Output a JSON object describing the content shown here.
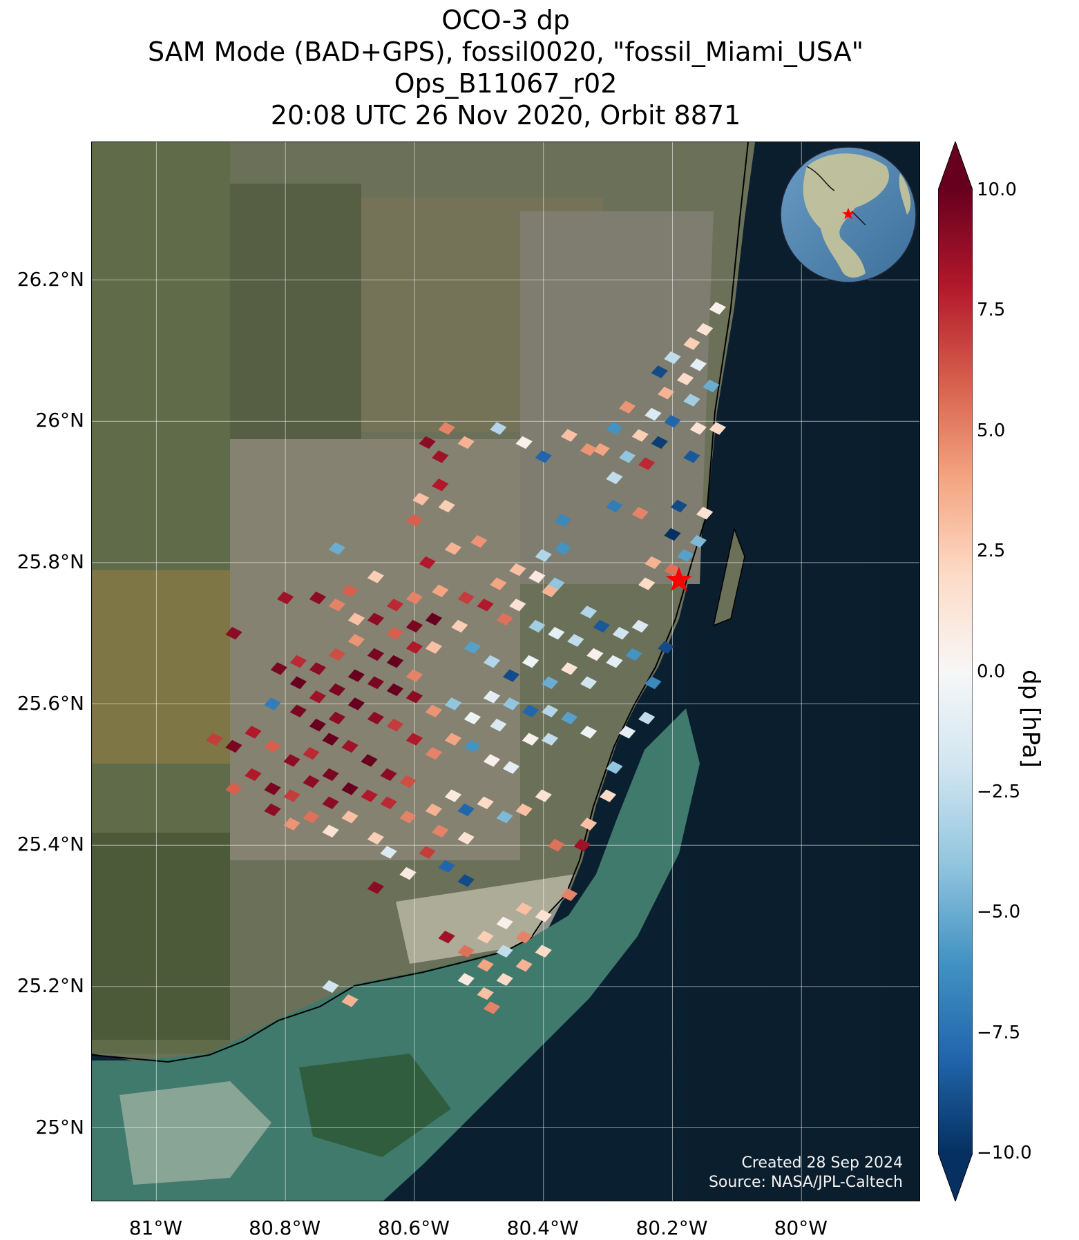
{
  "title_lines": [
    "OCO-3 dp",
    "SAM Mode (BAD+GPS), fossil0020, \"fossil_Miami_USA\"",
    "Ops_B11067_r02",
    "20:08 UTC 26 Nov 2020, Orbit 8871"
  ],
  "map": {
    "lat_ticks": [
      "26.2°N",
      "26°N",
      "25.8°N",
      "25.6°N",
      "25.4°N",
      "25.2°N",
      "25°N"
    ],
    "lat_values": [
      26.2,
      26.0,
      25.8,
      25.6,
      25.4,
      25.2,
      25.0
    ],
    "lon_ticks": [
      "81°W",
      "80.8°W",
      "80.6°W",
      "80.4°W",
      "80.2°W",
      "80°W"
    ],
    "lon_values": [
      -81.0,
      -80.8,
      -80.6,
      -80.4,
      -80.2,
      -80.0
    ],
    "lon_range": [
      -81.1,
      -79.815
    ],
    "lat_range": [
      24.895,
      26.395
    ],
    "target_marker": {
      "lon": -80.19,
      "lat": 25.775,
      "color": "#ff0000",
      "shape": "star"
    },
    "credits": [
      "Created 28 Sep 2024",
      "Source: NASA/JPL-Caltech"
    ],
    "inset": "globe-icon"
  },
  "colorbar": {
    "label": "dp [hPa]",
    "ticks": [
      "10.0",
      "7.5",
      "5.0",
      "2.5",
      "0.0",
      "−2.5",
      "−5.0",
      "−7.5",
      "−10.0"
    ],
    "tick_values": [
      10,
      7.5,
      5,
      2.5,
      0,
      -2.5,
      -5,
      -7.5,
      -10
    ],
    "range": [
      -10,
      10
    ],
    "colors": {
      "max": "#67001f",
      "mid": "#f7f7f7",
      "min": "#053061"
    }
  },
  "chart_data": {
    "type": "heatmap",
    "variable": "dp",
    "units": "hPa",
    "value_range": [
      -10,
      10
    ],
    "cell_size_deg": [
      0.026,
      0.018
    ],
    "points": [
      {
        "lon": -80.13,
        "lat": 26.16,
        "dp": 0.5
      },
      {
        "lon": -80.15,
        "lat": 26.13,
        "dp": 1.5
      },
      {
        "lon": -80.17,
        "lat": 26.11,
        "dp": 2.5
      },
      {
        "lon": -80.2,
        "lat": 26.09,
        "dp": -2.5
      },
      {
        "lon": -80.16,
        "lat": 26.08,
        "dp": -1.0
      },
      {
        "lon": -80.22,
        "lat": 26.07,
        "dp": -9.0
      },
      {
        "lon": -80.18,
        "lat": 26.06,
        "dp": 2.0
      },
      {
        "lon": -80.14,
        "lat": 26.05,
        "dp": -5.0
      },
      {
        "lon": -80.21,
        "lat": 26.04,
        "dp": 3.5
      },
      {
        "lon": -80.17,
        "lat": 26.03,
        "dp": -3.5
      },
      {
        "lon": -80.27,
        "lat": 26.02,
        "dp": 4.5
      },
      {
        "lon": -80.23,
        "lat": 26.01,
        "dp": -1.5
      },
      {
        "lon": -80.2,
        "lat": 26.0,
        "dp": -8.0
      },
      {
        "lon": -80.16,
        "lat": 25.99,
        "dp": 1.5
      },
      {
        "lon": -80.29,
        "lat": 25.99,
        "dp": -6.0
      },
      {
        "lon": -80.25,
        "lat": 25.98,
        "dp": 2.5
      },
      {
        "lon": -80.22,
        "lat": 25.97,
        "dp": -9.5
      },
      {
        "lon": -80.13,
        "lat": 25.99,
        "dp": 2.0
      },
      {
        "lon": -80.31,
        "lat": 25.96,
        "dp": 4.0
      },
      {
        "lon": -80.27,
        "lat": 25.95,
        "dp": -4.0
      },
      {
        "lon": -80.24,
        "lat": 25.94,
        "dp": 7.5
      },
      {
        "lon": -80.17,
        "lat": 25.95,
        "dp": -8.5
      },
      {
        "lon": -80.55,
        "lat": 25.99,
        "dp": 5.0
      },
      {
        "lon": -80.58,
        "lat": 25.97,
        "dp": 9.0
      },
      {
        "lon": -80.52,
        "lat": 25.97,
        "dp": 3.5
      },
      {
        "lon": -80.56,
        "lat": 25.95,
        "dp": 8.5
      },
      {
        "lon": -80.47,
        "lat": 25.99,
        "dp": -3.0
      },
      {
        "lon": -80.43,
        "lat": 25.97,
        "dp": 0.5
      },
      {
        "lon": -80.4,
        "lat": 25.95,
        "dp": -8.0
      },
      {
        "lon": -80.36,
        "lat": 25.98,
        "dp": 3.0
      },
      {
        "lon": -80.33,
        "lat": 25.96,
        "dp": 4.5
      },
      {
        "lon": -80.29,
        "lat": 25.92,
        "dp": -2.5
      },
      {
        "lon": -80.56,
        "lat": 25.91,
        "dp": 8.0
      },
      {
        "lon": -80.59,
        "lat": 25.89,
        "dp": 3.0
      },
      {
        "lon": -80.55,
        "lat": 25.88,
        "dp": 2.5
      },
      {
        "lon": -80.6,
        "lat": 25.86,
        "dp": 6.0
      },
      {
        "lon": -80.29,
        "lat": 25.88,
        "dp": -7.0
      },
      {
        "lon": -80.25,
        "lat": 25.87,
        "dp": 5.0
      },
      {
        "lon": -80.19,
        "lat": 25.88,
        "dp": -9.0
      },
      {
        "lon": -80.15,
        "lat": 25.87,
        "dp": 1.5
      },
      {
        "lon": -80.37,
        "lat": 25.86,
        "dp": -6.5
      },
      {
        "lon": -80.2,
        "lat": 25.84,
        "dp": -10.0
      },
      {
        "lon": -80.16,
        "lat": 25.83,
        "dp": -4.5
      },
      {
        "lon": -80.72,
        "lat": 25.82,
        "dp": -5.0
      },
      {
        "lon": -80.58,
        "lat": 25.8,
        "dp": 8.0
      },
      {
        "lon": -80.54,
        "lat": 25.82,
        "dp": 3.5
      },
      {
        "lon": -80.5,
        "lat": 25.83,
        "dp": 4.5
      },
      {
        "lon": -80.4,
        "lat": 25.81,
        "dp": -3.0
      },
      {
        "lon": -80.37,
        "lat": 25.82,
        "dp": -6.0
      },
      {
        "lon": -80.44,
        "lat": 25.79,
        "dp": 3.0
      },
      {
        "lon": -80.41,
        "lat": 25.78,
        "dp": 1.0
      },
      {
        "lon": -80.38,
        "lat": 25.77,
        "dp": -4.0
      },
      {
        "lon": -80.47,
        "lat": 25.77,
        "dp": 4.0
      },
      {
        "lon": -80.23,
        "lat": 25.8,
        "dp": 3.5
      },
      {
        "lon": -80.2,
        "lat": 25.79,
        "dp": 5.5
      },
      {
        "lon": -80.18,
        "lat": 25.81,
        "dp": -5.5
      },
      {
        "lon": -80.24,
        "lat": 25.77,
        "dp": 2.0
      },
      {
        "lon": -80.44,
        "lat": 25.74,
        "dp": 1.5
      },
      {
        "lon": -80.39,
        "lat": 25.76,
        "dp": 3.5
      },
      {
        "lon": -80.33,
        "lat": 25.73,
        "dp": -3.0
      },
      {
        "lon": -80.31,
        "lat": 25.71,
        "dp": -8.5
      },
      {
        "lon": -80.28,
        "lat": 25.7,
        "dp": -2.0
      },
      {
        "lon": -80.25,
        "lat": 25.71,
        "dp": -1.5
      },
      {
        "lon": -80.26,
        "lat": 25.67,
        "dp": -6.0
      },
      {
        "lon": -80.29,
        "lat": 25.66,
        "dp": -1.0
      },
      {
        "lon": -80.32,
        "lat": 25.67,
        "dp": 0.5
      },
      {
        "lon": -80.35,
        "lat": 25.69,
        "dp": -2.5
      },
      {
        "lon": -80.38,
        "lat": 25.7,
        "dp": -1.0
      },
      {
        "lon": -80.41,
        "lat": 25.71,
        "dp": -3.5
      },
      {
        "lon": -80.36,
        "lat": 25.65,
        "dp": 1.5
      },
      {
        "lon": -80.33,
        "lat": 25.63,
        "dp": -2.0
      },
      {
        "lon": -80.39,
        "lat": 25.63,
        "dp": -5.0
      },
      {
        "lon": -80.42,
        "lat": 25.66,
        "dp": -0.5
      },
      {
        "lon": -80.45,
        "lat": 25.64,
        "dp": -9.0
      },
      {
        "lon": -80.48,
        "lat": 25.66,
        "dp": -3.0
      },
      {
        "lon": -80.51,
        "lat": 25.68,
        "dp": -5.5
      },
      {
        "lon": -80.48,
        "lat": 25.61,
        "dp": -1.0
      },
      {
        "lon": -80.45,
        "lat": 25.6,
        "dp": -4.0
      },
      {
        "lon": -80.42,
        "lat": 25.59,
        "dp": -8.0
      },
      {
        "lon": -80.39,
        "lat": 25.59,
        "dp": -3.0
      },
      {
        "lon": -80.36,
        "lat": 25.58,
        "dp": -5.5
      },
      {
        "lon": -80.33,
        "lat": 25.56,
        "dp": -0.5
      },
      {
        "lon": -80.39,
        "lat": 25.55,
        "dp": -2.5
      },
      {
        "lon": -80.42,
        "lat": 25.55,
        "dp": 0.5
      },
      {
        "lon": -80.47,
        "lat": 25.57,
        "dp": -1.5
      },
      {
        "lon": -80.51,
        "lat": 25.58,
        "dp": -0.5
      },
      {
        "lon": -80.54,
        "lat": 25.6,
        "dp": -4.0
      },
      {
        "lon": -80.51,
        "lat": 25.54,
        "dp": -6.0
      },
      {
        "lon": -80.48,
        "lat": 25.52,
        "dp": 0.5
      },
      {
        "lon": -80.45,
        "lat": 25.51,
        "dp": -1.0
      },
      {
        "lon": -80.54,
        "lat": 25.55,
        "dp": 4.0
      },
      {
        "lon": -80.57,
        "lat": 25.59,
        "dp": 4.5
      },
      {
        "lon": -80.6,
        "lat": 25.64,
        "dp": 5.0
      },
      {
        "lon": -80.57,
        "lat": 25.68,
        "dp": 3.0
      },
      {
        "lon": -80.53,
        "lat": 25.71,
        "dp": 2.5
      },
      {
        "lon": -80.6,
        "lat": 25.75,
        "dp": 5.0
      },
      {
        "lon": -80.56,
        "lat": 25.76,
        "dp": 4.0
      },
      {
        "lon": -80.52,
        "lat": 25.75,
        "dp": 7.0
      },
      {
        "lon": -80.49,
        "lat": 25.74,
        "dp": 8.0
      },
      {
        "lon": -80.46,
        "lat": 25.72,
        "dp": 5.5
      },
      {
        "lon": -80.63,
        "lat": 25.74,
        "dp": 7.5
      },
      {
        "lon": -80.66,
        "lat": 25.72,
        "dp": 9.0
      },
      {
        "lon": -80.63,
        "lat": 25.7,
        "dp": 6.0
      },
      {
        "lon": -80.6,
        "lat": 25.71,
        "dp": 9.5
      },
      {
        "lon": -80.57,
        "lat": 25.72,
        "dp": 10.0
      },
      {
        "lon": -80.69,
        "lat": 25.69,
        "dp": 4.5
      },
      {
        "lon": -80.66,
        "lat": 25.67,
        "dp": 9.5
      },
      {
        "lon": -80.63,
        "lat": 25.66,
        "dp": 10.0
      },
      {
        "lon": -80.6,
        "lat": 25.68,
        "dp": 8.0
      },
      {
        "lon": -80.72,
        "lat": 25.67,
        "dp": 6.5
      },
      {
        "lon": -80.69,
        "lat": 25.64,
        "dp": 10.0
      },
      {
        "lon": -80.66,
        "lat": 25.63,
        "dp": 9.5
      },
      {
        "lon": -80.63,
        "lat": 25.62,
        "dp": 10.0
      },
      {
        "lon": -80.6,
        "lat": 25.61,
        "dp": 9.0
      },
      {
        "lon": -80.75,
        "lat": 25.65,
        "dp": 9.0
      },
      {
        "lon": -80.78,
        "lat": 25.66,
        "dp": 7.5
      },
      {
        "lon": -80.81,
        "lat": 25.65,
        "dp": 9.5
      },
      {
        "lon": -80.78,
        "lat": 25.63,
        "dp": 10.0
      },
      {
        "lon": -80.75,
        "lat": 25.61,
        "dp": 8.5
      },
      {
        "lon": -80.72,
        "lat": 25.62,
        "dp": 9.5
      },
      {
        "lon": -80.69,
        "lat": 25.6,
        "dp": 10.0
      },
      {
        "lon": -80.66,
        "lat": 25.58,
        "dp": 9.0
      },
      {
        "lon": -80.63,
        "lat": 25.57,
        "dp": 7.0
      },
      {
        "lon": -80.6,
        "lat": 25.55,
        "dp": 8.0
      },
      {
        "lon": -80.57,
        "lat": 25.53,
        "dp": 5.0
      },
      {
        "lon": -80.72,
        "lat": 25.58,
        "dp": 9.0
      },
      {
        "lon": -80.75,
        "lat": 25.57,
        "dp": 10.0
      },
      {
        "lon": -80.78,
        "lat": 25.59,
        "dp": 9.5
      },
      {
        "lon": -80.82,
        "lat": 25.6,
        "dp": -7.0
      },
      {
        "lon": -80.88,
        "lat": 25.7,
        "dp": 9.0
      },
      {
        "lon": -80.7,
        "lat": 25.76,
        "dp": 6.0
      },
      {
        "lon": -80.72,
        "lat": 25.74,
        "dp": 5.0
      },
      {
        "lon": -80.75,
        "lat": 25.75,
        "dp": 9.0
      },
      {
        "lon": -80.69,
        "lat": 25.72,
        "dp": 3.0
      },
      {
        "lon": -80.8,
        "lat": 25.75,
        "dp": 8.5
      },
      {
        "lon": -80.66,
        "lat": 25.78,
        "dp": 2.5
      },
      {
        "lon": -80.91,
        "lat": 25.55,
        "dp": 7.0
      },
      {
        "lon": -80.88,
        "lat": 25.54,
        "dp": 9.5
      },
      {
        "lon": -80.85,
        "lat": 25.56,
        "dp": 8.0
      },
      {
        "lon": -80.82,
        "lat": 25.54,
        "dp": 6.0
      },
      {
        "lon": -80.79,
        "lat": 25.52,
        "dp": 9.0
      },
      {
        "lon": -80.76,
        "lat": 25.53,
        "dp": 7.5
      },
      {
        "lon": -80.73,
        "lat": 25.55,
        "dp": 10.0
      },
      {
        "lon": -80.7,
        "lat": 25.54,
        "dp": 8.5
      },
      {
        "lon": -80.67,
        "lat": 25.52,
        "dp": 10.0
      },
      {
        "lon": -80.64,
        "lat": 25.5,
        "dp": 9.0
      },
      {
        "lon": -80.61,
        "lat": 25.49,
        "dp": 6.5
      },
      {
        "lon": -80.73,
        "lat": 25.5,
        "dp": 9.5
      },
      {
        "lon": -80.7,
        "lat": 25.48,
        "dp": 10.0
      },
      {
        "lon": -80.67,
        "lat": 25.47,
        "dp": 8.0
      },
      {
        "lon": -80.76,
        "lat": 25.49,
        "dp": 9.0
      },
      {
        "lon": -80.79,
        "lat": 25.47,
        "dp": 7.0
      },
      {
        "lon": -80.82,
        "lat": 25.48,
        "dp": 9.5
      },
      {
        "lon": -80.85,
        "lat": 25.5,
        "dp": 8.0
      },
      {
        "lon": -80.88,
        "lat": 25.48,
        "dp": 6.0
      },
      {
        "lon": -80.82,
        "lat": 25.45,
        "dp": 9.0
      },
      {
        "lon": -80.79,
        "lat": 25.43,
        "dp": 4.5
      },
      {
        "lon": -80.76,
        "lat": 25.44,
        "dp": 5.5
      },
      {
        "lon": -80.73,
        "lat": 25.46,
        "dp": 9.0
      },
      {
        "lon": -80.7,
        "lat": 25.44,
        "dp": 3.0
      },
      {
        "lon": -80.73,
        "lat": 25.42,
        "dp": 1.5
      },
      {
        "lon": -80.64,
        "lat": 25.46,
        "dp": 7.5
      },
      {
        "lon": -80.61,
        "lat": 25.44,
        "dp": 5.0
      },
      {
        "lon": -80.57,
        "lat": 25.45,
        "dp": 3.5
      },
      {
        "lon": -80.54,
        "lat": 25.47,
        "dp": 1.0
      },
      {
        "lon": -80.52,
        "lat": 25.45,
        "dp": -8.0
      },
      {
        "lon": -80.49,
        "lat": 25.46,
        "dp": 2.0
      },
      {
        "lon": -80.46,
        "lat": 25.44,
        "dp": -4.5
      },
      {
        "lon": -80.43,
        "lat": 25.45,
        "dp": 3.0
      },
      {
        "lon": -80.4,
        "lat": 25.47,
        "dp": 1.5
      },
      {
        "lon": -80.56,
        "lat": 25.42,
        "dp": 5.0
      },
      {
        "lon": -80.52,
        "lat": 25.41,
        "dp": 1.5
      },
      {
        "lon": -80.58,
        "lat": 25.39,
        "dp": 7.0
      },
      {
        "lon": -80.55,
        "lat": 25.37,
        "dp": -8.0
      },
      {
        "lon": -80.52,
        "lat": 25.35,
        "dp": -9.0
      },
      {
        "lon": -80.64,
        "lat": 25.39,
        "dp": -1.5
      },
      {
        "lon": -80.61,
        "lat": 25.36,
        "dp": 1.0
      },
      {
        "lon": -80.66,
        "lat": 25.41,
        "dp": 2.5
      },
      {
        "lon": -80.66,
        "lat": 25.34,
        "dp": 9.0
      },
      {
        "lon": -80.33,
        "lat": 25.43,
        "dp": 3.0
      },
      {
        "lon": -80.34,
        "lat": 25.4,
        "dp": 8.5
      },
      {
        "lon": -80.38,
        "lat": 25.4,
        "dp": 5.5
      },
      {
        "lon": -80.3,
        "lat": 25.47,
        "dp": 2.0
      },
      {
        "lon": -80.29,
        "lat": 25.51,
        "dp": -4.0
      },
      {
        "lon": -80.27,
        "lat": 25.56,
        "dp": -1.0
      },
      {
        "lon": -80.24,
        "lat": 25.58,
        "dp": -2.5
      },
      {
        "lon": -80.23,
        "lat": 25.63,
        "dp": -6.5
      },
      {
        "lon": -80.21,
        "lat": 25.68,
        "dp": -9.0
      },
      {
        "lon": -80.43,
        "lat": 25.31,
        "dp": 3.0
      },
      {
        "lon": -80.4,
        "lat": 25.3,
        "dp": 1.5
      },
      {
        "lon": -80.46,
        "lat": 25.29,
        "dp": 0.5
      },
      {
        "lon": -80.43,
        "lat": 25.27,
        "dp": 5.0
      },
      {
        "lon": -80.4,
        "lat": 25.25,
        "dp": 2.0
      },
      {
        "lon": -80.49,
        "lat": 25.27,
        "dp": 2.5
      },
      {
        "lon": -80.46,
        "lat": 25.25,
        "dp": -2.5
      },
      {
        "lon": -80.43,
        "lat": 25.23,
        "dp": 3.5
      },
      {
        "lon": -80.49,
        "lat": 25.23,
        "dp": 4.0
      },
      {
        "lon": -80.46,
        "lat": 25.21,
        "dp": 2.0
      },
      {
        "lon": -80.49,
        "lat": 25.19,
        "dp": 3.0
      },
      {
        "lon": -80.52,
        "lat": 25.25,
        "dp": 5.5
      },
      {
        "lon": -80.52,
        "lat": 25.21,
        "dp": 1.0
      },
      {
        "lon": -80.55,
        "lat": 25.27,
        "dp": 8.5
      },
      {
        "lon": -80.48,
        "lat": 25.17,
        "dp": 5.0
      },
      {
        "lon": -80.36,
        "lat": 25.33,
        "dp": 5.0
      },
      {
        "lon": -80.73,
        "lat": 25.2,
        "dp": -2.0
      },
      {
        "lon": -80.7,
        "lat": 25.18,
        "dp": 3.5
      }
    ]
  }
}
